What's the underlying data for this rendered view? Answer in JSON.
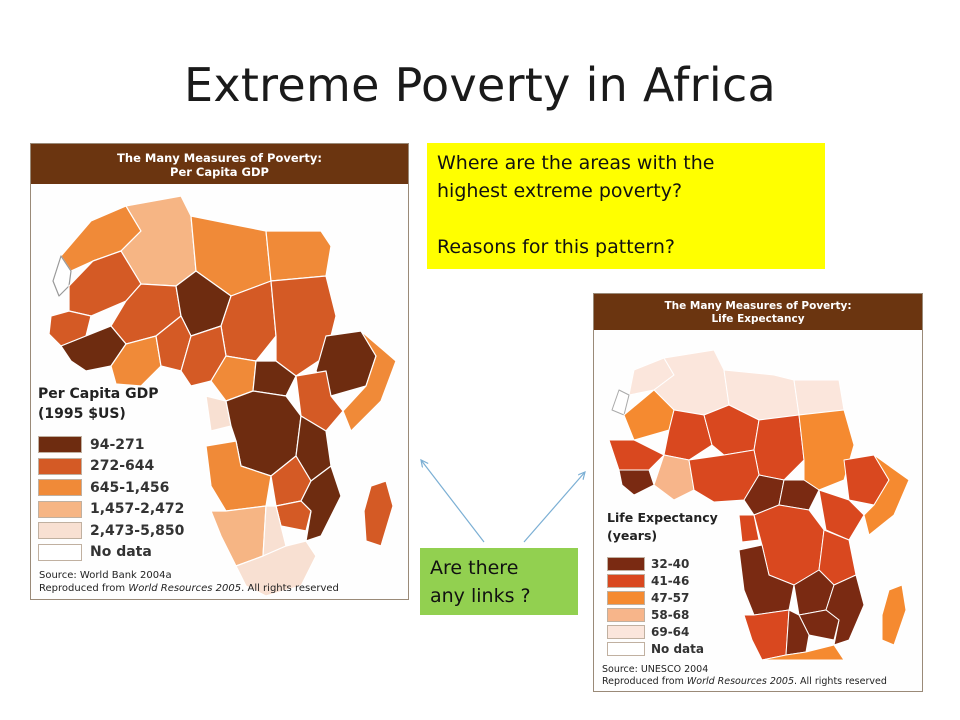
{
  "slide": {
    "title": "Extreme Poverty in Africa"
  },
  "gdp_map": {
    "header_line1": "The Many Measures of Poverty:",
    "header_line2": "Per Capita GDP",
    "legend_title_line1": "Per Capita GDP",
    "legend_title_line2": "(1995 $US)",
    "legend": [
      {
        "label": "94-271",
        "color": "#6e2c10"
      },
      {
        "label": "272-644",
        "color": "#d45a25"
      },
      {
        "label": "645-1,456",
        "color": "#f08a38"
      },
      {
        "label": "1,457-2,472",
        "color": "#f6b584"
      },
      {
        "label": "2,473-5,850",
        "color": "#f8e0d2"
      },
      {
        "label": "No data",
        "color": "#ffffff"
      }
    ],
    "source_line1": "Source: World Bank 2004a",
    "source_line2_prefix": "Reproduced from ",
    "source_line2_italic": "World Resources 2005",
    "source_line2_suffix": ". All rights reserved"
  },
  "life_map": {
    "header_line1": "The Many Measures of Poverty:",
    "header_line2": "Life Expectancy",
    "legend_title_line1": "Life Expectancy",
    "legend_title_line2": "(years)",
    "legend": [
      {
        "label": "32-40",
        "color": "#7a2a12"
      },
      {
        "label": "41-46",
        "color": "#d9481f"
      },
      {
        "label": "47-57",
        "color": "#f58a30"
      },
      {
        "label": "58-68",
        "color": "#f7b58a"
      },
      {
        "label": "69-64",
        "color": "#fbe6dc"
      },
      {
        "label": "No data",
        "color": "#ffffff"
      }
    ],
    "source_line1": "Source: UNESCO 2004",
    "source_line2_prefix": "Reproduced from ",
    "source_line2_italic": "World Resources 2005",
    "source_line2_suffix": ". All rights reserved"
  },
  "notes": {
    "question_line1": "Where are the areas with the",
    "question_line2": "highest extreme poverty?",
    "question_line3": "Reasons for this pattern?",
    "links_line1": "Are there",
    "links_line2": "any links ?"
  },
  "colors": {
    "header_brown": "#6b3510",
    "note_yellow": "#ffff00",
    "note_green": "#92d050",
    "arrow_blue": "#7bafd4"
  }
}
